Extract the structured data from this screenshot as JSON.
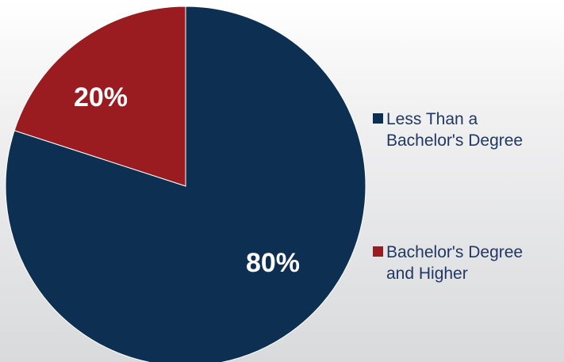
{
  "chart_data": {
    "type": "pie",
    "slices": [
      {
        "label": "Bachelor's Degree and Higher",
        "value": 20,
        "display": "20%",
        "color": "#9b1c20"
      },
      {
        "label": "Less Than a Bachelor's Degree",
        "value": 80,
        "display": "80%",
        "color": "#0d3052"
      }
    ],
    "legend": {
      "placement": "right",
      "items": [
        {
          "text": "Less Than a\nBachelor's Degree",
          "color": "#0d3052"
        },
        {
          "text": "Bachelor's Degree\nand Higher",
          "color": "#9b1c20"
        }
      ]
    }
  }
}
